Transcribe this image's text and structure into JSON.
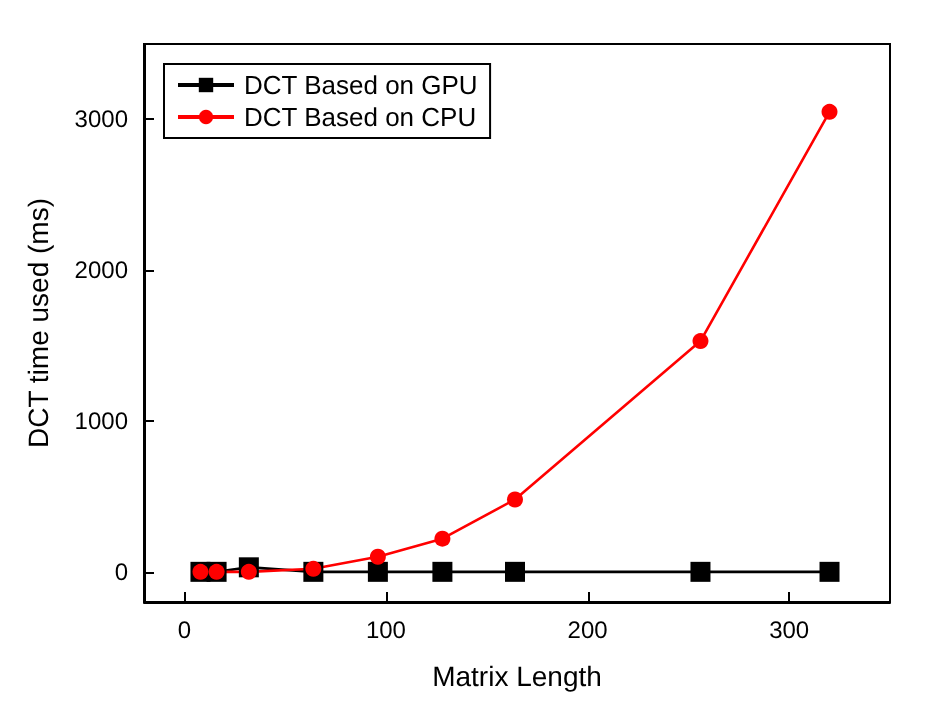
{
  "chart_data": {
    "type": "line",
    "xlabel": "Matrix Length",
    "ylabel": "DCT time used (ms)",
    "xlim": [
      -20,
      350
    ],
    "xticks": [
      0,
      100,
      200,
      300
    ],
    "ylim": [
      -200,
      3500
    ],
    "yticks": [
      0,
      1000,
      2000,
      3000
    ],
    "x": [
      8,
      16,
      32,
      64,
      96,
      128,
      164,
      256,
      320
    ],
    "series": [
      {
        "name": "DCT Based on GPU",
        "color": "#000000",
        "marker": "square",
        "values": [
          0,
          0,
          30,
          0,
          0,
          0,
          0,
          0,
          0
        ]
      },
      {
        "name": "DCT Based on CPU",
        "color": "#ff0000",
        "marker": "circle",
        "values": [
          0,
          0,
          0,
          20,
          100,
          220,
          480,
          1530,
          3050
        ]
      }
    ],
    "legend": "top left",
    "grid": false,
    "line_style": "solid"
  }
}
